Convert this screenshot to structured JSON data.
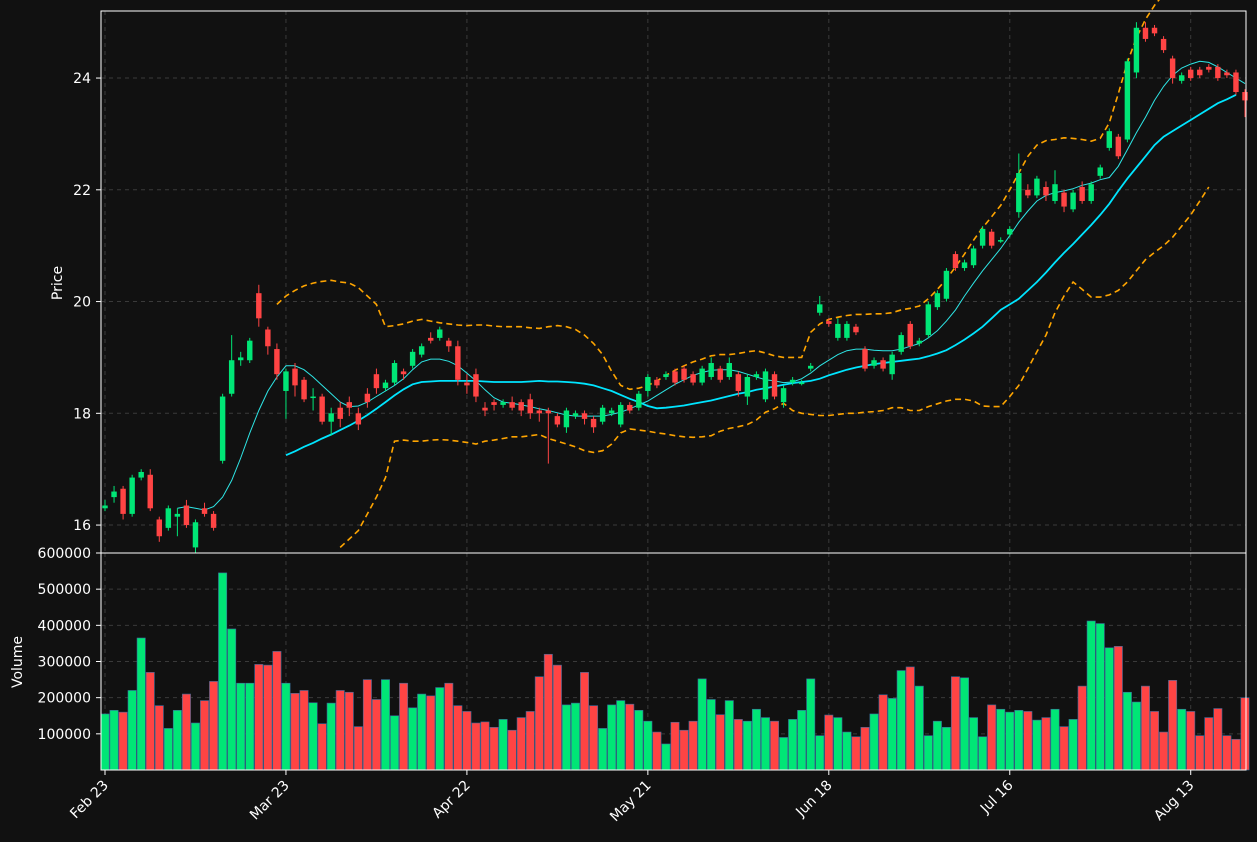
{
  "colors": {
    "background": "#111111",
    "up": "#00e676",
    "down": "#ff4444",
    "ma_short": "#2ee6e6",
    "ma_long": "#00e5ff",
    "bollinger": "#ffa500",
    "grid": "#3a3a3a",
    "text": "#ffffff"
  },
  "chart_data": {
    "type": "candlestick",
    "grid": true,
    "price_panel": {
      "ylabel": "Price",
      "ylim": [
        15.5,
        25.2
      ],
      "yticks": [
        16,
        18,
        20,
        22,
        24
      ]
    },
    "volume_panel": {
      "ylabel": "Volume",
      "ylim": [
        0,
        600000
      ],
      "yticks": [
        100000,
        200000,
        300000,
        400000,
        500000,
        600000
      ]
    },
    "x_ticks": [
      {
        "index": 0,
        "label": "Feb 23"
      },
      {
        "index": 20,
        "label": "Mar 23"
      },
      {
        "index": 40,
        "label": "Apr 22"
      },
      {
        "index": 60,
        "label": "May 21"
      },
      {
        "index": 80,
        "label": "Jun 18"
      },
      {
        "index": 100,
        "label": "Jul 16"
      },
      {
        "index": 120,
        "label": "Aug 13"
      }
    ],
    "candles": [
      [
        16.3,
        16.35,
        16.45,
        16.25
      ],
      [
        16.5,
        16.6,
        16.7,
        16.4
      ],
      [
        16.65,
        16.2,
        16.7,
        16.1
      ],
      [
        16.2,
        16.85,
        16.9,
        16.15
      ],
      [
        16.85,
        16.95,
        17.0,
        16.8
      ],
      [
        16.9,
        16.3,
        17.0,
        16.25
      ],
      [
        16.1,
        15.8,
        16.15,
        15.7
      ],
      [
        15.95,
        16.3,
        16.35,
        15.9
      ],
      [
        16.15,
        16.2,
        16.3,
        15.8
      ],
      [
        16.35,
        16.0,
        16.45,
        15.95
      ],
      [
        15.6,
        16.05,
        16.1,
        15.5
      ],
      [
        16.3,
        16.2,
        16.4,
        16.15
      ],
      [
        16.2,
        15.95,
        16.25,
        15.9
      ],
      [
        17.15,
        18.3,
        18.35,
        17.1
      ],
      [
        18.35,
        18.95,
        19.4,
        18.3
      ],
      [
        18.95,
        19.0,
        19.1,
        18.85
      ],
      [
        18.95,
        19.3,
        19.35,
        18.9
      ],
      [
        20.15,
        19.7,
        20.3,
        19.55
      ],
      [
        19.5,
        19.2,
        19.55,
        19.05
      ],
      [
        19.15,
        18.7,
        19.25,
        18.6
      ],
      [
        18.4,
        18.75,
        18.8,
        17.9
      ],
      [
        18.8,
        18.5,
        18.9,
        18.3
      ],
      [
        18.6,
        18.25,
        18.65,
        18.2
      ],
      [
        18.3,
        18.3,
        18.45,
        18.05
      ],
      [
        18.3,
        17.85,
        18.35,
        17.8
      ],
      [
        17.85,
        18.0,
        18.1,
        17.6
      ],
      [
        18.1,
        17.9,
        18.2,
        17.75
      ],
      [
        18.2,
        18.1,
        18.3,
        17.95
      ],
      [
        18.0,
        17.8,
        18.1,
        17.7
      ],
      [
        18.35,
        18.2,
        18.45,
        18.1
      ],
      [
        18.7,
        18.45,
        18.8,
        18.35
      ],
      [
        18.45,
        18.55,
        18.6,
        18.4
      ],
      [
        18.55,
        18.9,
        18.95,
        18.5
      ],
      [
        18.75,
        18.7,
        18.8,
        18.6
      ],
      [
        18.85,
        19.1,
        19.15,
        18.8
      ],
      [
        19.05,
        19.2,
        19.25,
        19.0
      ],
      [
        19.35,
        19.3,
        19.45,
        19.25
      ],
      [
        19.35,
        19.5,
        19.55,
        19.3
      ],
      [
        19.3,
        19.2,
        19.35,
        19.1
      ],
      [
        19.2,
        18.6,
        19.3,
        18.5
      ],
      [
        18.55,
        18.5,
        18.7,
        18.35
      ],
      [
        18.7,
        18.3,
        18.8,
        18.2
      ],
      [
        18.1,
        18.05,
        18.2,
        17.95
      ],
      [
        18.2,
        18.15,
        18.25,
        18.05
      ],
      [
        18.15,
        18.2,
        18.25,
        18.1
      ],
      [
        18.2,
        18.1,
        18.3,
        18.05
      ],
      [
        18.2,
        18.05,
        18.25,
        17.95
      ],
      [
        18.25,
        18.0,
        18.35,
        17.9
      ],
      [
        18.05,
        18.0,
        18.1,
        17.85
      ],
      [
        18.05,
        18.0,
        18.1,
        17.1
      ],
      [
        17.95,
        17.8,
        18.0,
        17.75
      ],
      [
        17.75,
        18.05,
        18.1,
        17.65
      ],
      [
        17.95,
        18.0,
        18.05,
        17.9
      ],
      [
        18.0,
        17.9,
        18.05,
        17.8
      ],
      [
        17.9,
        17.75,
        17.95,
        17.65
      ],
      [
        17.85,
        18.1,
        18.15,
        17.8
      ],
      [
        18.0,
        18.05,
        18.1,
        17.95
      ],
      [
        17.8,
        18.15,
        18.2,
        17.75
      ],
      [
        18.15,
        18.05,
        18.2,
        18.0
      ],
      [
        18.1,
        18.35,
        18.4,
        18.05
      ],
      [
        18.4,
        18.65,
        18.7,
        18.3
      ],
      [
        18.6,
        18.5,
        18.65,
        18.45
      ],
      [
        18.65,
        18.7,
        18.75,
        18.6
      ],
      [
        18.75,
        18.55,
        18.8,
        18.5
      ],
      [
        18.8,
        18.6,
        18.85,
        18.55
      ],
      [
        18.7,
        18.55,
        18.75,
        18.5
      ],
      [
        18.55,
        18.8,
        18.85,
        18.5
      ],
      [
        18.65,
        18.9,
        19.0,
        18.6
      ],
      [
        18.8,
        18.6,
        18.85,
        18.55
      ],
      [
        18.65,
        18.9,
        19.0,
        18.6
      ],
      [
        18.7,
        18.4,
        18.75,
        18.3
      ],
      [
        18.3,
        18.65,
        18.7,
        18.15
      ],
      [
        18.65,
        18.7,
        18.75,
        18.6
      ],
      [
        18.25,
        18.75,
        18.8,
        18.2
      ],
      [
        18.7,
        18.3,
        18.75,
        18.25
      ],
      [
        18.2,
        18.45,
        18.5,
        18.1
      ],
      [
        18.55,
        18.6,
        18.65,
        18.5
      ],
      [
        18.55,
        18.55,
        18.6,
        18.5
      ],
      [
        18.8,
        18.85,
        18.9,
        18.75
      ],
      [
        19.8,
        19.95,
        20.1,
        19.75
      ],
      [
        19.65,
        19.6,
        19.7,
        19.55
      ],
      [
        19.35,
        19.6,
        19.7,
        19.3
      ],
      [
        19.35,
        19.6,
        19.65,
        19.3
      ],
      [
        19.55,
        19.45,
        19.6,
        19.4
      ],
      [
        19.15,
        18.8,
        19.2,
        18.75
      ],
      [
        18.85,
        18.95,
        19.0,
        18.8
      ],
      [
        18.95,
        18.8,
        19.0,
        18.75
      ],
      [
        18.7,
        19.05,
        19.1,
        18.6
      ],
      [
        19.1,
        19.4,
        19.45,
        19.05
      ],
      [
        19.6,
        19.2,
        19.65,
        19.15
      ],
      [
        19.25,
        19.3,
        19.35,
        19.2
      ],
      [
        19.4,
        19.95,
        20.0,
        19.35
      ],
      [
        19.9,
        20.15,
        20.2,
        19.85
      ],
      [
        20.05,
        20.55,
        20.6,
        20.0
      ],
      [
        20.85,
        20.6,
        20.9,
        20.55
      ],
      [
        20.6,
        20.7,
        20.75,
        20.55
      ],
      [
        20.65,
        20.95,
        21.0,
        20.6
      ],
      [
        21.0,
        21.3,
        21.35,
        20.95
      ],
      [
        21.25,
        21.0,
        21.3,
        20.95
      ],
      [
        21.1,
        21.1,
        21.15,
        21.05
      ],
      [
        21.2,
        21.3,
        21.35,
        21.15
      ],
      [
        21.6,
        22.3,
        22.65,
        21.5
      ],
      [
        22.0,
        21.9,
        22.1,
        21.85
      ],
      [
        21.9,
        22.2,
        22.25,
        21.85
      ],
      [
        22.05,
        21.9,
        22.15,
        21.8
      ],
      [
        21.8,
        22.1,
        22.35,
        21.75
      ],
      [
        21.95,
        21.7,
        22.0,
        21.6
      ],
      [
        21.65,
        21.95,
        22.0,
        21.6
      ],
      [
        22.05,
        21.8,
        22.15,
        21.75
      ],
      [
        21.8,
        22.1,
        22.15,
        21.75
      ],
      [
        22.25,
        22.4,
        22.45,
        22.2
      ],
      [
        22.75,
        23.05,
        23.1,
        22.7
      ],
      [
        22.95,
        22.6,
        23.0,
        22.55
      ],
      [
        22.9,
        24.3,
        24.35,
        22.85
      ],
      [
        24.1,
        24.9,
        25.0,
        24.0
      ],
      [
        24.9,
        24.7,
        25.0,
        24.65
      ],
      [
        24.9,
        24.8,
        24.95,
        24.75
      ],
      [
        24.7,
        24.5,
        24.75,
        24.45
      ],
      [
        24.35,
        24.0,
        24.4,
        23.9
      ],
      [
        23.95,
        24.05,
        24.1,
        23.9
      ],
      [
        24.15,
        24.0,
        24.2,
        23.95
      ],
      [
        24.15,
        24.05,
        24.2,
        24.0
      ],
      [
        24.2,
        24.15,
        24.25,
        24.1
      ],
      [
        24.2,
        24.0,
        24.25,
        23.95
      ],
      [
        24.1,
        24.05,
        24.15,
        24.0
      ],
      [
        24.1,
        23.75,
        24.15,
        23.7
      ],
      [
        23.75,
        23.6,
        23.8,
        23.3
      ]
    ],
    "volume": [
      155000,
      165000,
      160000,
      220000,
      365000,
      270000,
      178000,
      115000,
      165000,
      210000,
      130000,
      192000,
      245000,
      545000,
      390000,
      240000,
      240000,
      292000,
      290000,
      328000,
      240000,
      212000,
      220000,
      186000,
      128000,
      185000,
      220000,
      215000,
      120000,
      250000,
      195000,
      250000,
      150000,
      240000,
      172000,
      210000,
      205000,
      228000,
      240000,
      178000,
      162000,
      130000,
      133000,
      118000,
      140000,
      110000,
      145000,
      162000,
      258000,
      320000,
      290000,
      180000,
      185000,
      270000,
      178000,
      115000,
      180000,
      192000,
      182000,
      165000,
      135000,
      105000,
      72000,
      132000,
      110000,
      135000,
      252000,
      195000,
      153000,
      192000,
      140000,
      135000,
      168000,
      145000,
      135000,
      90000,
      140000,
      165000,
      252000,
      95000,
      152000,
      145000,
      105000,
      92000,
      118000,
      155000,
      208000,
      198000,
      275000,
      285000,
      232000,
      95000,
      135000,
      118000,
      258000,
      255000,
      145000,
      92000,
      180000,
      168000,
      160000,
      165000,
      162000,
      138000,
      145000,
      168000,
      120000,
      140000,
      232000,
      412000,
      405000,
      338000,
      342000,
      215000,
      188000,
      232000,
      162000,
      105000,
      248000,
      168000,
      162000,
      95000,
      145000,
      170000,
      95000,
      85000,
      200000
    ],
    "series": [
      {
        "indicator": "short-ma",
        "start_index": 8,
        "values": [
          16.3,
          16.33,
          16.3,
          16.27,
          16.33,
          16.5,
          16.8,
          17.2,
          17.65,
          18.05,
          18.4,
          18.65,
          18.85,
          18.85,
          18.78,
          18.65,
          18.5,
          18.35,
          18.2,
          18.12,
          18.13,
          18.2,
          18.3,
          18.4,
          18.5,
          18.62,
          18.78,
          18.92,
          18.97,
          18.97,
          18.93,
          18.85,
          18.72,
          18.58,
          18.42,
          18.28,
          18.2,
          18.18,
          18.15,
          18.12,
          18.08,
          18.05,
          18.01,
          17.97,
          17.95,
          17.95,
          17.95,
          17.95,
          17.98,
          18.02,
          18.08,
          18.15,
          18.22,
          18.32,
          18.42,
          18.52,
          18.6,
          18.68,
          18.73,
          18.77,
          18.78,
          18.78,
          18.75,
          18.7,
          18.65,
          18.6,
          18.58,
          18.55,
          18.56,
          18.62,
          18.72,
          18.85,
          18.95,
          19.05,
          19.12,
          19.15,
          19.15,
          19.13,
          19.12,
          19.12,
          19.15,
          19.2,
          19.25,
          19.35,
          19.48,
          19.65,
          19.85,
          20.1,
          20.33,
          20.55,
          20.75,
          20.95,
          21.18,
          21.42,
          21.62,
          21.8,
          21.9,
          21.95,
          21.98,
          22.02,
          22.08,
          22.12,
          22.18,
          22.22,
          22.42,
          22.72,
          23.02,
          23.3,
          23.6,
          23.85,
          24.05,
          24.18,
          24.25,
          24.3,
          24.28,
          24.2,
          24.1,
          24.0,
          23.9
        ]
      },
      {
        "indicator": "long-ma",
        "start_index": 20,
        "values": [
          17.25,
          17.32,
          17.4,
          17.47,
          17.55,
          17.62,
          17.7,
          17.78,
          17.87,
          17.97,
          18.08,
          18.2,
          18.32,
          18.43,
          18.52,
          18.56,
          18.57,
          18.58,
          18.58,
          18.58,
          18.58,
          18.58,
          18.57,
          18.56,
          18.56,
          18.56,
          18.56,
          18.57,
          18.58,
          18.57,
          18.57,
          18.56,
          18.55,
          18.53,
          18.5,
          18.45,
          18.4,
          18.33,
          18.26,
          18.2,
          18.13,
          18.09,
          18.1,
          18.12,
          18.14,
          18.17,
          18.2,
          18.23,
          18.27,
          18.31,
          18.35,
          18.38,
          18.42,
          18.45,
          18.48,
          18.51,
          18.54,
          18.56,
          18.58,
          18.62,
          18.68,
          18.73,
          18.78,
          18.82,
          18.85,
          18.88,
          18.9,
          18.92,
          18.94,
          18.96,
          18.98,
          19.02,
          19.07,
          19.13,
          19.22,
          19.32,
          19.43,
          19.55,
          19.7,
          19.85,
          19.95,
          20.05,
          20.2,
          20.35,
          20.52,
          20.7,
          20.87,
          21.03,
          21.2,
          21.37,
          21.55,
          21.75,
          21.98,
          22.2,
          22.4,
          22.6,
          22.8,
          22.95,
          23.05,
          23.15,
          23.25,
          23.35,
          23.45,
          23.55,
          23.62,
          23.7
        ]
      },
      {
        "indicator": "upper-band",
        "start_index": 19,
        "values": [
          19.95,
          20.1,
          20.2,
          20.28,
          20.33,
          20.36,
          20.38,
          20.35,
          20.33,
          20.25,
          20.1,
          19.95,
          19.55,
          19.57,
          19.6,
          19.65,
          19.68,
          19.65,
          19.62,
          19.6,
          19.58,
          19.57,
          19.58,
          19.58,
          19.56,
          19.55,
          19.55,
          19.55,
          19.53,
          19.52,
          19.55,
          19.57,
          19.55,
          19.5,
          19.4,
          19.25,
          19.05,
          18.75,
          18.5,
          18.43,
          18.45,
          18.5,
          18.58,
          18.68,
          18.77,
          18.85,
          18.92,
          18.97,
          19.03,
          19.05,
          19.05,
          19.07,
          19.1,
          19.12,
          19.08,
          19.03,
          19.0,
          19.0,
          19.0,
          19.45,
          19.6,
          19.68,
          19.72,
          19.75,
          19.77,
          19.77,
          19.78,
          19.78,
          19.8,
          19.85,
          19.88,
          19.92,
          20.05,
          20.22,
          20.4,
          20.62,
          20.85,
          21.1,
          21.32,
          21.52,
          21.72,
          22.0,
          22.3,
          22.6,
          22.8,
          22.88,
          22.9,
          22.93,
          22.92,
          22.9,
          22.87,
          22.92,
          23.2,
          23.72,
          24.28,
          24.72,
          25.05,
          25.3,
          25.5
        ]
      },
      {
        "indicator": "lower-band",
        "start_index": 26,
        "values": [
          15.6,
          15.75,
          15.9,
          16.2,
          16.5,
          16.85,
          17.5,
          17.52,
          17.5,
          17.5,
          17.52,
          17.53,
          17.52,
          17.5,
          17.48,
          17.45,
          17.5,
          17.52,
          17.55,
          17.58,
          17.58,
          17.6,
          17.62,
          17.55,
          17.5,
          17.45,
          17.4,
          17.33,
          17.3,
          17.33,
          17.45,
          17.65,
          17.72,
          17.7,
          17.68,
          17.65,
          17.63,
          17.6,
          17.58,
          17.57,
          17.58,
          17.6,
          17.68,
          17.73,
          17.76,
          17.8,
          17.88,
          18.02,
          18.08,
          18.18,
          18.05,
          18.0,
          17.98,
          17.96,
          17.96,
          17.98,
          18.0,
          18.0,
          18.02,
          18.03,
          18.05,
          18.1,
          18.1,
          18.05,
          18.05,
          18.12,
          18.17,
          18.22,
          18.25,
          18.25,
          18.22,
          18.13,
          18.12,
          18.12,
          18.3,
          18.5,
          18.8,
          19.1,
          19.4,
          19.8,
          20.1,
          20.35,
          20.22,
          20.08,
          20.08,
          20.12,
          20.2,
          20.35,
          20.55,
          20.75,
          20.88,
          21.0,
          21.15,
          21.35,
          21.55,
          21.8,
          22.05
        ]
      }
    ]
  }
}
